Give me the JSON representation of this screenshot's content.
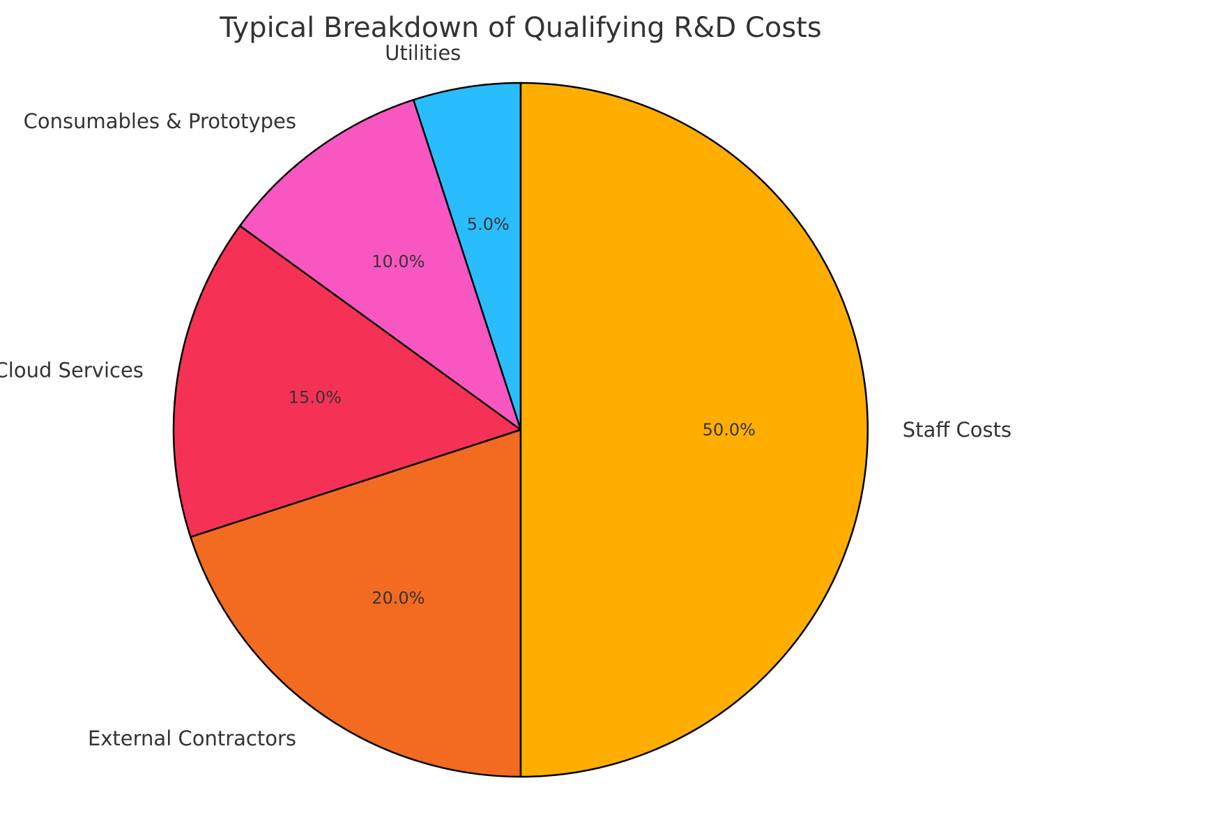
{
  "chart_data": {
    "type": "pie",
    "title": "Typical Breakdown of Qualifying R&D Costs",
    "start_angle_deg": 90,
    "direction": "counterclockwise",
    "categories": [
      "Utilities",
      "Consumables & Prototypes",
      "Software & Cloud Services",
      "External Contractors",
      "Staff Costs"
    ],
    "values": [
      5,
      10,
      15,
      20,
      50
    ],
    "percent_labels": [
      "5.0%",
      "10.0%",
      "15.0%",
      "20.0%",
      "50.0%"
    ],
    "colors": [
      "#29BDFD",
      "#F857C1",
      "#F53255",
      "#F26B21",
      "#FFAE00"
    ],
    "edge_color": "#000000"
  }
}
